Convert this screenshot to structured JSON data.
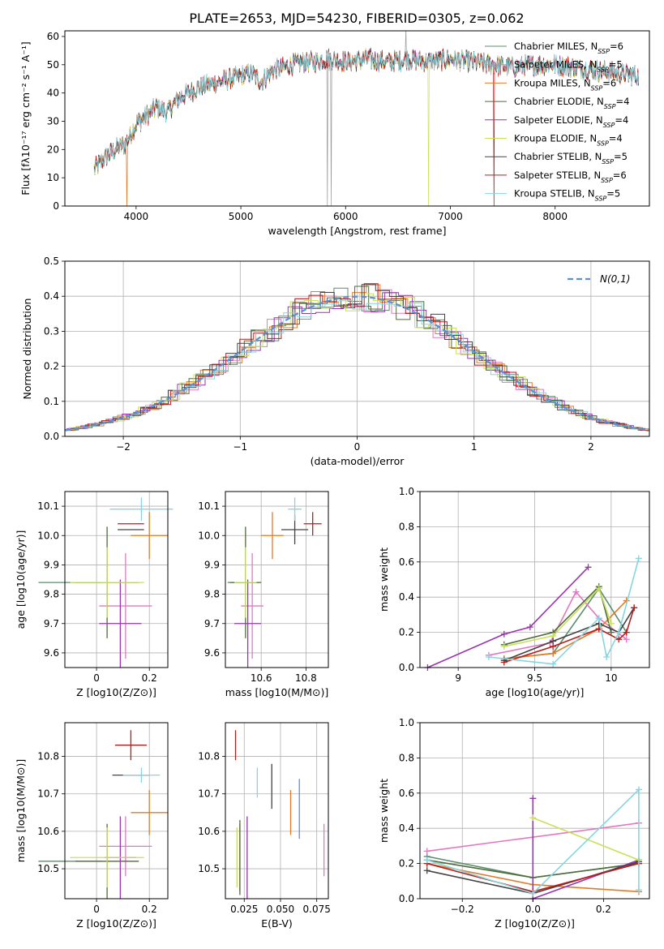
{
  "figure": {
    "title": "PLATE=2653, MJD=54230, FIBERID=0305, z=0.062"
  },
  "models": [
    {
      "name": "Chabrier MILES",
      "n_ssp": 6,
      "color": "#5b8c6e"
    },
    {
      "name": "Salpeter MILES",
      "n_ssp": 5,
      "color": "#e377c2"
    },
    {
      "name": "Kroupa MILES",
      "n_ssp": 6,
      "color": "#e07b28"
    },
    {
      "name": "Chabrier ELODIE",
      "n_ssp": 4,
      "color": "#4e6b3a"
    },
    {
      "name": "Salpeter ELODIE",
      "n_ssp": 4,
      "color": "#9a34b0"
    },
    {
      "name": "Kroupa ELODIE",
      "n_ssp": 4,
      "color": "#c8e05a"
    },
    {
      "name": "Chabrier STELIB",
      "n_ssp": 5,
      "color": "#444444"
    },
    {
      "name": "Salpeter STELIB",
      "n_ssp": 6,
      "color": "#b81d1d"
    },
    {
      "name": "Kroupa STELIB",
      "n_ssp": 5,
      "color": "#86d6e0"
    }
  ],
  "legend_label": "N",
  "legend_sub": "SSP",
  "chart_data": [
    {
      "id": "spectrum",
      "type": "line",
      "xlabel": "wavelength [Angstrom, rest frame]",
      "ylabel": "Flux [fλ10⁻¹⁷ erg cm⁻² s⁻¹ A⁻¹]",
      "xlim": [
        3320,
        8900
      ],
      "ylim": [
        0,
        62
      ],
      "xticks": [
        4000,
        5000,
        6000,
        7000,
        8000
      ],
      "yticks": [
        0,
        10,
        20,
        30,
        40,
        50,
        60
      ],
      "continuum": {
        "x": [
          3600,
          3700,
          3800,
          3900,
          4000,
          4100,
          4200,
          4300,
          4400,
          4500,
          4600,
          4700,
          4800,
          4900,
          5000,
          5100,
          5200,
          5300,
          5400,
          5500,
          5600,
          5700,
          5800,
          5900,
          6000,
          6200,
          6400,
          6600,
          6800,
          7000,
          7200,
          7400,
          7600,
          7800,
          8000,
          8200,
          8400,
          8600,
          8800
        ],
        "y": [
          13,
          17,
          20,
          22,
          29,
          32,
          35,
          33,
          38,
          40,
          42,
          43,
          44,
          45,
          46,
          47,
          44,
          48,
          49,
          50,
          51,
          51,
          52,
          52,
          51,
          52,
          51,
          52,
          51,
          52,
          51,
          50,
          49,
          50,
          50,
          49,
          48,
          47,
          46
        ]
      },
      "x_range": [
        3600,
        8800
      ]
    },
    {
      "id": "residuals",
      "type": "histogram",
      "xlabel": "(data-model)/error",
      "ylabel": "Normed distribution",
      "xlim": [
        -2.5,
        2.5
      ],
      "ylim": [
        0,
        0.5
      ],
      "xticks": [
        -2,
        -1,
        0,
        1,
        2
      ],
      "xticklabels": [
        "−2",
        "−1",
        "0",
        "1",
        "2"
      ],
      "yticks": [
        0.0,
        0.1,
        0.2,
        0.3,
        0.4,
        0.5
      ],
      "bins": 44,
      "reference": {
        "name": "N(0,1)",
        "mean": 0,
        "sigma": 1,
        "color": "#5b8fd6"
      }
    },
    {
      "id": "age-vs-Z",
      "type": "errorbar",
      "xlabel": "Z [log10(Z/Z⊙)]",
      "ylabel": "age [log10(age/yr)]",
      "xlim": [
        -0.12,
        0.27
      ],
      "ylim": [
        9.55,
        10.15
      ],
      "xticks": [
        0.0,
        0.2
      ],
      "yticks": [
        9.6,
        9.7,
        9.8,
        9.9,
        10.0,
        10.1
      ],
      "points": [
        {
          "model": 0,
          "x": -0.1,
          "y": 9.84,
          "xerr": 0.12,
          "yerr": 0.0
        },
        {
          "model": 1,
          "x": 0.11,
          "y": 9.76,
          "xerr": 0.1,
          "yerr": 0.18
        },
        {
          "model": 2,
          "x": 0.2,
          "y": 10.0,
          "xerr": 0.07,
          "yerr": 0.08
        },
        {
          "model": 3,
          "x": 0.04,
          "y": 9.84,
          "xerr": 0.12,
          "yerr": 0.19
        },
        {
          "model": 4,
          "x": 0.09,
          "y": 9.7,
          "xerr": 0.08,
          "yerr": 0.15
        },
        {
          "model": 5,
          "x": 0.04,
          "y": 9.84,
          "xerr": 0.14,
          "yerr": 0.12
        },
        {
          "model": 6,
          "x": 0.13,
          "y": 10.02,
          "xerr": 0.05,
          "yerr": 0.0
        },
        {
          "model": 7,
          "x": 0.13,
          "y": 10.04,
          "xerr": 0.05,
          "yerr": 0.0
        },
        {
          "model": 8,
          "x": 0.17,
          "y": 10.09,
          "xerr": 0.12,
          "yerr": 0.04
        }
      ]
    },
    {
      "id": "age-vs-mass",
      "type": "errorbar",
      "xlabel": "mass [log10(M/M⊙)]",
      "ylabel": "",
      "xlim": [
        10.44,
        10.9
      ],
      "ylim": [
        9.55,
        10.15
      ],
      "xticks": [
        10.6,
        10.8
      ],
      "yticks": [
        9.6,
        9.7,
        9.8,
        9.9,
        10.0,
        10.1
      ],
      "points": [
        {
          "model": 0,
          "x": 10.52,
          "y": 9.84,
          "xerr": 0.07,
          "yerr": 0.0
        },
        {
          "model": 1,
          "x": 10.56,
          "y": 9.76,
          "xerr": 0.05,
          "yerr": 0.18
        },
        {
          "model": 2,
          "x": 10.65,
          "y": 10.0,
          "xerr": 0.05,
          "yerr": 0.08
        },
        {
          "model": 3,
          "x": 10.53,
          "y": 9.84,
          "xerr": 0.07,
          "yerr": 0.19
        },
        {
          "model": 4,
          "x": 10.54,
          "y": 9.7,
          "xerr": 0.06,
          "yerr": 0.15
        },
        {
          "model": 5,
          "x": 10.53,
          "y": 9.84,
          "xerr": 0.05,
          "yerr": 0.12
        },
        {
          "model": 6,
          "x": 10.75,
          "y": 10.02,
          "xerr": 0.06,
          "yerr": 0.05
        },
        {
          "model": 7,
          "x": 10.83,
          "y": 10.04,
          "xerr": 0.04,
          "yerr": 0.04
        },
        {
          "model": 8,
          "x": 10.75,
          "y": 10.09,
          "xerr": 0.03,
          "yerr": 0.04
        }
      ]
    },
    {
      "id": "weight-vs-age",
      "type": "line",
      "xlabel": "age [log10(age/yr)]",
      "ylabel": "mass weight",
      "xlim": [
        8.75,
        10.25
      ],
      "ylim": [
        0.0,
        1.0
      ],
      "xticks": [
        9.0,
        9.5,
        10.0
      ],
      "yticks": [
        0.0,
        0.2,
        0.4,
        0.6,
        0.8,
        1.0
      ],
      "series": [
        {
          "model": 0,
          "x": [
            9.3,
            9.62,
            9.92,
            10.1
          ],
          "y": [
            0.05,
            0.08,
            0.45,
            0.2
          ]
        },
        {
          "model": 1,
          "x": [
            9.2,
            9.6,
            9.77,
            9.92,
            10.1
          ],
          "y": [
            0.07,
            0.14,
            0.43,
            0.28,
            0.16
          ]
        },
        {
          "model": 2,
          "x": [
            9.3,
            9.62,
            9.92,
            10.1
          ],
          "y": [
            0.05,
            0.08,
            0.22,
            0.38
          ]
        },
        {
          "model": 3,
          "x": [
            9.3,
            9.62,
            9.92,
            10.0
          ],
          "y": [
            0.13,
            0.2,
            0.46,
            0.2
          ]
        },
        {
          "model": 4,
          "x": [
            8.8,
            9.3,
            9.47,
            9.85
          ],
          "y": [
            0.0,
            0.19,
            0.23,
            0.57
          ]
        },
        {
          "model": 5,
          "x": [
            9.3,
            9.62,
            9.92,
            10.0
          ],
          "y": [
            0.12,
            0.18,
            0.45,
            0.25
          ]
        },
        {
          "model": 6,
          "x": [
            9.3,
            9.62,
            9.92,
            10.05,
            10.15
          ],
          "y": [
            0.04,
            0.15,
            0.25,
            0.2,
            0.34
          ]
        },
        {
          "model": 7,
          "x": [
            9.3,
            9.62,
            9.92,
            10.05,
            10.1,
            10.15
          ],
          "y": [
            0.03,
            0.12,
            0.22,
            0.16,
            0.2,
            0.34
          ]
        },
        {
          "model": 8,
          "x": [
            9.2,
            9.62,
            9.92,
            9.97,
            10.05,
            10.18
          ],
          "y": [
            0.06,
            0.02,
            0.28,
            0.06,
            0.2,
            0.62
          ]
        }
      ]
    },
    {
      "id": "mass-vs-Z",
      "type": "errorbar",
      "xlabel": "Z [log10(Z/Z⊙)]",
      "ylabel": "mass [log10(M/M⊙)]",
      "xlim": [
        -0.12,
        0.27
      ],
      "ylim": [
        10.42,
        10.89
      ],
      "xticks": [
        0.0,
        0.2
      ],
      "yticks": [
        10.5,
        10.6,
        10.7,
        10.8
      ],
      "points": [
        {
          "model": 0,
          "x": -0.1,
          "y": 10.52,
          "xerr": 0.12,
          "yerr": 0.0
        },
        {
          "model": 1,
          "x": 0.11,
          "y": 10.56,
          "xerr": 0.1,
          "yerr": 0.08
        },
        {
          "model": 2,
          "x": 0.2,
          "y": 10.65,
          "xerr": 0.07,
          "yerr": 0.06
        },
        {
          "model": 3,
          "x": 0.04,
          "y": 10.52,
          "xerr": 0.12,
          "yerr": 0.1
        },
        {
          "model": 4,
          "x": 0.09,
          "y": 10.53,
          "xerr": 0.06,
          "yerr": 0.11
        },
        {
          "model": 5,
          "x": 0.04,
          "y": 10.53,
          "xerr": 0.14,
          "yerr": 0.08
        },
        {
          "model": 6,
          "x": 0.13,
          "y": 10.75,
          "xerr": 0.07,
          "yerr": 0.0
        },
        {
          "model": 7,
          "x": 0.13,
          "y": 10.83,
          "xerr": 0.06,
          "yerr": 0.04
        },
        {
          "model": 8,
          "x": 0.17,
          "y": 10.75,
          "xerr": 0.07,
          "yerr": 0.02
        }
      ]
    },
    {
      "id": "mass-vs-ebv",
      "type": "errorbar",
      "xlabel": "E(B-V)",
      "ylabel": "",
      "xlim": [
        0.012,
        0.083
      ],
      "ylim": [
        10.42,
        10.89
      ],
      "xticks": [
        0.025,
        0.05,
        0.075
      ],
      "xticklabels": [
        "0.025",
        "0.050",
        "0.075"
      ],
      "yticks": [
        10.5,
        10.6,
        10.7,
        10.8
      ],
      "points": [
        {
          "model": 0,
          "x": 0.022,
          "y": 10.53,
          "xerr": 0.0,
          "yerr": 0.09
        },
        {
          "model": 1,
          "x": 0.08,
          "y": 10.55,
          "xerr": 0.0,
          "yerr": 0.07
        },
        {
          "model": 2,
          "x": 0.057,
          "y": 10.65,
          "xerr": 0.0,
          "yerr": 0.06
        },
        {
          "model": 3,
          "x": 0.022,
          "y": 10.53,
          "xerr": 0.0,
          "yerr": 0.1
        },
        {
          "model": 4,
          "x": 0.027,
          "y": 10.53,
          "xerr": 0.0,
          "yerr": 0.11
        },
        {
          "model": 5,
          "x": 0.02,
          "y": 10.53,
          "xerr": 0.0,
          "yerr": 0.08
        },
        {
          "model": 6,
          "x": 0.044,
          "y": 10.72,
          "xerr": 0.0,
          "yerr": 0.06
        },
        {
          "model": 7,
          "x": 0.019,
          "y": 10.83,
          "xerr": 0.0,
          "yerr": 0.04
        },
        {
          "model": 8,
          "x": 0.034,
          "y": 10.73,
          "xerr": 0.0,
          "yerr": 0.04
        }
      ],
      "extra_bars": [
        {
          "x": 0.063,
          "y": 10.66,
          "yerr": 0.08,
          "color": "#5b8fd6"
        }
      ]
    },
    {
      "id": "weight-vs-Z",
      "type": "line",
      "xlabel": "Z [log10(Z/Z⊙)]",
      "ylabel": "mass weight",
      "xlim": [
        -0.32,
        0.33
      ],
      "ylim": [
        0.0,
        1.0
      ],
      "xticks": [
        -0.2,
        0.0,
        0.2
      ],
      "xticklabels": [
        "−0.2",
        "0.0",
        "0.2"
      ],
      "yticks": [
        0.0,
        0.2,
        0.4,
        0.6,
        0.8,
        1.0
      ],
      "series": [
        {
          "model": 0,
          "x": [
            -0.3,
            0.0,
            0.3
          ],
          "y": [
            0.24,
            0.12,
            0.2
          ]
        },
        {
          "model": 1,
          "x": [
            -0.3,
            0.3
          ],
          "y": [
            0.27,
            0.43
          ]
        },
        {
          "model": 2,
          "x": [
            -0.3,
            0.0,
            0.3
          ],
          "y": [
            0.2,
            0.08,
            0.04
          ]
        },
        {
          "model": 3,
          "x": [
            -0.3,
            0.0,
            0.3
          ],
          "y": [
            0.22,
            0.12,
            0.2
          ]
        },
        {
          "model": 4,
          "x": [
            0.0,
            0.0,
            0.3
          ],
          "y": [
            0.57,
            0.0,
            0.22
          ]
        },
        {
          "model": 5,
          "x": [
            0.0,
            0.3
          ],
          "y": [
            0.46,
            0.22
          ]
        },
        {
          "model": 6,
          "x": [
            -0.3,
            0.0,
            0.3
          ],
          "y": [
            0.16,
            0.03,
            0.21
          ]
        },
        {
          "model": 7,
          "x": [
            -0.3,
            0.0,
            0.3
          ],
          "y": [
            0.2,
            0.04,
            0.2
          ]
        },
        {
          "model": 8,
          "x": [
            -0.3,
            0.0,
            0.3,
            0.3
          ],
          "y": [
            0.22,
            0.03,
            0.62,
            0.05
          ]
        }
      ]
    }
  ]
}
